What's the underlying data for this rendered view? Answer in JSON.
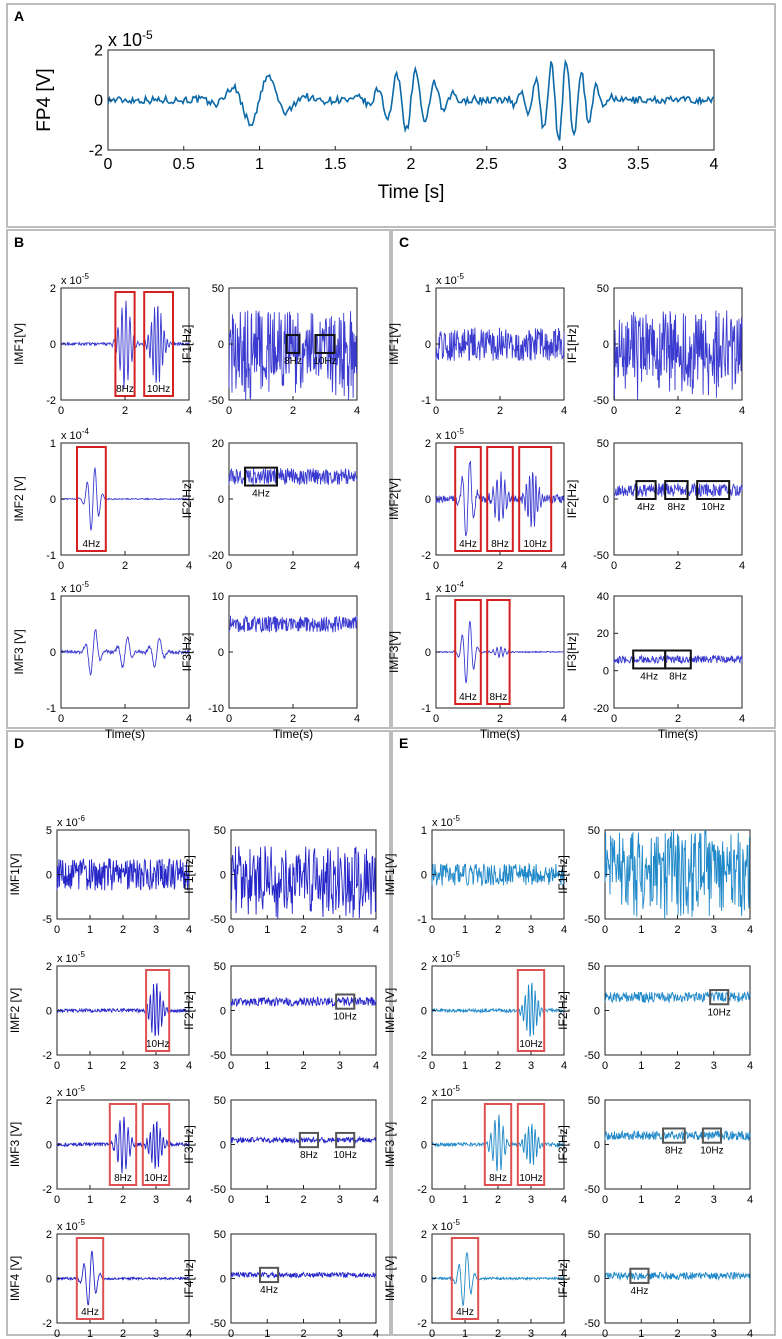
{
  "panels": [
    {
      "label": "A"
    },
    {
      "label": "B"
    },
    {
      "label": "C"
    },
    {
      "label": "D"
    },
    {
      "label": "E"
    }
  ],
  "chart_data": [
    {
      "panel": "A",
      "type": "line",
      "title": "",
      "color": "#0d6aa8",
      "xlabel": "Time [s]",
      "ylabel": "FP4 [V]",
      "exponent": "x 10",
      "exponent_power": "-5",
      "xlim": [
        0,
        4
      ],
      "ylim": [
        -2,
        2
      ],
      "xticks": [
        "0",
        "0.5",
        "1",
        "1.5",
        "2",
        "2.5",
        "3",
        "3.5",
        "4"
      ],
      "yticks": [
        "-2",
        "0",
        "2"
      ],
      "bursts": [
        [
          1.0,
          1.0,
          4
        ],
        [
          2.0,
          1.2,
          8
        ],
        [
          3.0,
          1.6,
          10
        ]
      ],
      "noise": 0.15,
      "boxes": []
    },
    {
      "panel": "B",
      "type": "line",
      "color": "#3b3bd0",
      "xlabel": "",
      "ylabel": "IMF1[V]",
      "exponent": "x 10",
      "exponent_power": "-5",
      "xlim": [
        0,
        4
      ],
      "ylim": [
        -2,
        2
      ],
      "xticks": [
        "0",
        "2",
        "4"
      ],
      "yticks": [
        "-2",
        "0",
        "2"
      ],
      "bursts": [
        [
          2.0,
          1.6,
          8
        ],
        [
          3.0,
          1.5,
          10
        ]
      ],
      "noise": 0.05,
      "boxes": [
        {
          "x0": 1.7,
          "x1": 2.3,
          "label": "8Hz",
          "color": "#d42020"
        },
        {
          "x0": 2.6,
          "x1": 3.5,
          "label": "10Hz",
          "color": "#d42020"
        }
      ]
    },
    {
      "panel": "B",
      "type": "line",
      "color": "#3b3bd0",
      "xlabel": "",
      "ylabel": "IF1[Hz]",
      "exponent": "",
      "exponent_power": "",
      "xlim": [
        0,
        4
      ],
      "ylim": [
        -50,
        50
      ],
      "xticks": [
        "0",
        "2",
        "4"
      ],
      "yticks": [
        "-50",
        "0",
        "50"
      ],
      "bursts": [],
      "noise": 30,
      "spiky": true,
      "boxes": [
        {
          "x0": 1.8,
          "x1": 2.2,
          "label": "8Hz",
          "color": "#111111"
        },
        {
          "x0": 2.7,
          "x1": 3.3,
          "label": "10Hz",
          "color": "#111111"
        }
      ]
    },
    {
      "panel": "B",
      "type": "line",
      "color": "#3b3bd0",
      "xlabel": "",
      "ylabel": "IMF2 [V]",
      "exponent": "x 10",
      "exponent_power": "-4",
      "xlim": [
        0,
        4
      ],
      "ylim": [
        -1,
        1
      ],
      "xticks": [
        "0",
        "2",
        "4"
      ],
      "yticks": [
        "-1",
        "0",
        "1"
      ],
      "bursts": [
        [
          1.0,
          0.6,
          4
        ]
      ],
      "noise": 0.01,
      "boxes": [
        {
          "x0": 0.5,
          "x1": 1.4,
          "label": "4Hz",
          "color": "#d42020"
        }
      ]
    },
    {
      "panel": "B",
      "type": "line",
      "color": "#3b3bd0",
      "xlabel": "",
      "ylabel": "IF2[Hz]",
      "exponent": "",
      "exponent_power": "",
      "xlim": [
        0,
        4
      ],
      "ylim": [
        -20,
        20
      ],
      "xticks": [
        "0",
        "2",
        "4"
      ],
      "yticks": [
        "-20",
        "0",
        "20"
      ],
      "bursts": [],
      "noise": 3,
      "offset": 8,
      "boxes": [
        {
          "x0": 0.5,
          "x1": 1.5,
          "label": "4Hz",
          "color": "#111111"
        }
      ]
    },
    {
      "panel": "B",
      "type": "line",
      "color": "#3b3bd0",
      "xlabel": "Time(s)",
      "ylabel": "IMF3 [V]",
      "exponent": "x 10",
      "exponent_power": "-5",
      "xlim": [
        0,
        4
      ],
      "ylim": [
        -1,
        1
      ],
      "xticks": [
        "0",
        "2",
        "4"
      ],
      "yticks": [
        "-1",
        "0",
        "1"
      ],
      "bursts": [
        [
          1.0,
          0.45,
          3
        ],
        [
          2.0,
          0.3,
          3
        ],
        [
          3.0,
          0.3,
          3
        ]
      ],
      "noise": 0.03,
      "boxes": []
    },
    {
      "panel": "B",
      "type": "line",
      "color": "#3b3bd0",
      "xlabel": "Time(s)",
      "ylabel": "IF3[Hz]",
      "exponent": "",
      "exponent_power": "",
      "xlim": [
        0,
        4
      ],
      "ylim": [
        -10,
        10
      ],
      "xticks": [
        "0",
        "2",
        "4"
      ],
      "yticks": [
        "-10",
        "0",
        "10"
      ],
      "bursts": [],
      "noise": 1.5,
      "offset": 5,
      "boxes": []
    },
    {
      "panel": "C",
      "type": "line",
      "color": "#3b3bd0",
      "xlabel": "",
      "ylabel": "IMF1[V]",
      "exponent": "x 10",
      "exponent_power": "-5",
      "xlim": [
        0,
        4
      ],
      "ylim": [
        -1,
        1
      ],
      "xticks": [
        "0",
        "2",
        "4"
      ],
      "yticks": [
        "-1",
        "0",
        "1"
      ],
      "bursts": [],
      "noise": 0.3,
      "boxes": []
    },
    {
      "panel": "C",
      "type": "line",
      "color": "#3b3bd0",
      "xlabel": "",
      "ylabel": "IF1[Hz]",
      "exponent": "",
      "exponent_power": "",
      "xlim": [
        0,
        4
      ],
      "ylim": [
        -50,
        50
      ],
      "xticks": [
        "0",
        "2",
        "4"
      ],
      "yticks": [
        "-50",
        "0",
        "50"
      ],
      "bursts": [],
      "noise": 30,
      "spiky": true,
      "boxes": []
    },
    {
      "panel": "C",
      "type": "line",
      "color": "#3b3bd0",
      "xlabel": "",
      "ylabel": "IMF2[V]",
      "exponent": "x 10",
      "exponent_power": "-5",
      "xlim": [
        0,
        4
      ],
      "ylim": [
        -2,
        2
      ],
      "xticks": [
        "0",
        "2",
        "4"
      ],
      "yticks": [
        "-2",
        "0",
        "2"
      ],
      "bursts": [
        [
          1.0,
          1.5,
          4
        ],
        [
          2.0,
          0.9,
          8
        ],
        [
          3.0,
          1.0,
          10
        ]
      ],
      "noise": 0.15,
      "boxes": [
        {
          "x0": 0.6,
          "x1": 1.4,
          "label": "4Hz",
          "color": "#d42020"
        },
        {
          "x0": 1.6,
          "x1": 2.4,
          "label": "8Hz",
          "color": "#d42020"
        },
        {
          "x0": 2.6,
          "x1": 3.6,
          "label": "10Hz",
          "color": "#d42020"
        }
      ]
    },
    {
      "panel": "C",
      "type": "line",
      "color": "#3b3bd0",
      "xlabel": "",
      "ylabel": "IF2[Hz]",
      "exponent": "",
      "exponent_power": "",
      "xlim": [
        0,
        4
      ],
      "ylim": [
        -50,
        50
      ],
      "xticks": [
        "0",
        "2",
        "4"
      ],
      "yticks": [
        "-50",
        "0",
        "50"
      ],
      "bursts": [],
      "noise": 6,
      "offset": 8,
      "boxes": [
        {
          "x0": 0.7,
          "x1": 1.3,
          "label": "4Hz",
          "color": "#111111"
        },
        {
          "x0": 1.6,
          "x1": 2.3,
          "label": "8Hz",
          "color": "#111111"
        },
        {
          "x0": 2.6,
          "x1": 3.6,
          "label": "10Hz",
          "color": "#111111"
        }
      ]
    },
    {
      "panel": "C",
      "type": "line",
      "color": "#3b3bd0",
      "xlabel": "Time(s)",
      "ylabel": "IMF3[V]",
      "exponent": "x 10",
      "exponent_power": "-4",
      "xlim": [
        0,
        4
      ],
      "ylim": [
        -1,
        1
      ],
      "xticks": [
        "0",
        "2",
        "4"
      ],
      "yticks": [
        "-1",
        "0",
        "1"
      ],
      "bursts": [
        [
          1.0,
          0.6,
          4
        ],
        [
          2.0,
          0.1,
          8
        ]
      ],
      "noise": 0.01,
      "boxes": [
        {
          "x0": 0.6,
          "x1": 1.4,
          "label": "4Hz",
          "color": "#d42020"
        },
        {
          "x0": 1.6,
          "x1": 2.3,
          "label": "8Hz",
          "color": "#d42020"
        }
      ]
    },
    {
      "panel": "C",
      "type": "line",
      "color": "#3b3bd0",
      "xlabel": "Time(s)",
      "ylabel": "IF3[Hz]",
      "exponent": "",
      "exponent_power": "",
      "xlim": [
        0,
        4
      ],
      "ylim": [
        -20,
        40
      ],
      "xticks": [
        "0",
        "2",
        "4"
      ],
      "yticks": [
        "-20",
        "0",
        "20",
        "40"
      ],
      "bursts": [],
      "noise": 2,
      "offset": 6,
      "boxes": [
        {
          "x0": 0.6,
          "x1": 1.6,
          "label": "4Hz",
          "color": "#111111"
        },
        {
          "x0": 1.6,
          "x1": 2.4,
          "label": "8Hz",
          "color": "#111111"
        }
      ]
    },
    {
      "panel": "D",
      "type": "line",
      "color": "#2424c8",
      "xlabel": "",
      "ylabel": "IMF1[V]",
      "exponent": "x 10",
      "exponent_power": "-6",
      "xlim": [
        0,
        4
      ],
      "ylim": [
        -5,
        5
      ],
      "xticks": [
        "0",
        "1",
        "2",
        "3",
        "4"
      ],
      "yticks": [
        "-5",
        "0",
        "5"
      ],
      "bursts": [],
      "noise": 1.8,
      "boxes": []
    },
    {
      "panel": "D",
      "type": "line",
      "color": "#2424c8",
      "xlabel": "",
      "ylabel": "IF1[Hz]",
      "exponent": "",
      "exponent_power": "",
      "xlim": [
        0,
        4
      ],
      "ylim": [
        -50,
        50
      ],
      "xticks": [
        "0",
        "1",
        "2",
        "3",
        "4"
      ],
      "yticks": [
        "-50",
        "0",
        "50"
      ],
      "bursts": [],
      "noise": 32,
      "spiky": true,
      "boxes": []
    },
    {
      "panel": "D",
      "type": "line",
      "color": "#2424c8",
      "xlabel": "",
      "ylabel": "IMF2 [V]",
      "exponent": "x 10",
      "exponent_power": "-5",
      "xlim": [
        0,
        4
      ],
      "ylim": [
        -2,
        2
      ],
      "xticks": [
        "0",
        "1",
        "2",
        "3",
        "4"
      ],
      "yticks": [
        "-2",
        "0",
        "2"
      ],
      "bursts": [
        [
          3.0,
          1.3,
          10
        ]
      ],
      "noise": 0.08,
      "boxes": [
        {
          "x0": 2.7,
          "x1": 3.4,
          "label": "10Hz",
          "color": "#e05050"
        }
      ]
    },
    {
      "panel": "D",
      "type": "line",
      "color": "#2424c8",
      "xlabel": "",
      "ylabel": "IF2[Hz]",
      "exponent": "",
      "exponent_power": "",
      "xlim": [
        0,
        4
      ],
      "ylim": [
        -50,
        50
      ],
      "xticks": [
        "0",
        "1",
        "2",
        "3",
        "4"
      ],
      "yticks": [
        "-50",
        "0",
        "50"
      ],
      "bursts": [],
      "noise": 5,
      "offset": 10,
      "boxes": [
        {
          "x0": 2.9,
          "x1": 3.4,
          "label": "10Hz",
          "color": "#555555"
        }
      ]
    },
    {
      "panel": "D",
      "type": "line",
      "color": "#2424c8",
      "xlabel": "",
      "ylabel": "IMF3 [V]",
      "exponent": "x 10",
      "exponent_power": "-5",
      "xlim": [
        0,
        4
      ],
      "ylim": [
        -2,
        2
      ],
      "xticks": [
        "0",
        "1",
        "2",
        "3",
        "4"
      ],
      "yticks": [
        "-2",
        "0",
        "2"
      ],
      "bursts": [
        [
          2.0,
          1.3,
          8
        ],
        [
          3.0,
          1.1,
          10
        ]
      ],
      "noise": 0.08,
      "boxes": [
        {
          "x0": 1.6,
          "x1": 2.4,
          "label": "8Hz",
          "color": "#e05050"
        },
        {
          "x0": 2.6,
          "x1": 3.4,
          "label": "10Hz",
          "color": "#e05050"
        }
      ]
    },
    {
      "panel": "D",
      "type": "line",
      "color": "#2424c8",
      "xlabel": "",
      "ylabel": "IF3[Hz]",
      "exponent": "",
      "exponent_power": "",
      "xlim": [
        0,
        4
      ],
      "ylim": [
        -50,
        50
      ],
      "xticks": [
        "0",
        "1",
        "2",
        "3",
        "4"
      ],
      "yticks": [
        "-50",
        "0",
        "50"
      ],
      "bursts": [],
      "noise": 3,
      "offset": 5,
      "boxes": [
        {
          "x0": 1.9,
          "x1": 2.4,
          "label": "8Hz",
          "color": "#555555"
        },
        {
          "x0": 2.9,
          "x1": 3.4,
          "label": "10Hz",
          "color": "#555555"
        }
      ]
    },
    {
      "panel": "D",
      "type": "line",
      "color": "#2424c8",
      "xlabel": "Time(s)",
      "ylabel": "IMF4 [V]",
      "exponent": "x 10",
      "exponent_power": "-5",
      "xlim": [
        0,
        4
      ],
      "ylim": [
        -2,
        2
      ],
      "xticks": [
        "0",
        "1",
        "2",
        "3",
        "4"
      ],
      "yticks": [
        "-2",
        "0",
        "2"
      ],
      "bursts": [
        [
          1.0,
          1.3,
          4
        ]
      ],
      "noise": 0.05,
      "boxes": [
        {
          "x0": 0.6,
          "x1": 1.4,
          "label": "4Hz",
          "color": "#e05050"
        }
      ]
    },
    {
      "panel": "D",
      "type": "line",
      "color": "#2424c8",
      "xlabel": "Time (s)",
      "ylabel": "IF4[Hz]",
      "exponent": "",
      "exponent_power": "",
      "xlim": [
        0,
        4
      ],
      "ylim": [
        -50,
        50
      ],
      "xticks": [
        "0",
        "1",
        "2",
        "3",
        "4"
      ],
      "yticks": [
        "-50",
        "0",
        "50"
      ],
      "bursts": [],
      "noise": 3,
      "offset": 4,
      "boxes": [
        {
          "x0": 0.8,
          "x1": 1.3,
          "label": "4Hz",
          "color": "#555555"
        }
      ]
    },
    {
      "panel": "E",
      "type": "line",
      "color": "#1f88c8",
      "xlabel": "",
      "ylabel": "IMF1[V]",
      "exponent": "x 10",
      "exponent_power": "-5",
      "xlim": [
        0,
        4
      ],
      "ylim": [
        -1,
        1
      ],
      "xticks": [
        "0",
        "1",
        "2",
        "3",
        "4"
      ],
      "yticks": [
        "-1",
        "0",
        "1"
      ],
      "bursts": [],
      "noise": 0.25,
      "boxes": []
    },
    {
      "panel": "E",
      "type": "line",
      "color": "#1f88c8",
      "xlabel": "",
      "ylabel": "IF1[Hz]",
      "exponent": "",
      "exponent_power": "",
      "xlim": [
        0,
        4
      ],
      "ylim": [
        -50,
        50
      ],
      "xticks": [
        "0",
        "1",
        "2",
        "3",
        "4"
      ],
      "yticks": [
        "-50",
        "0",
        "50"
      ],
      "bursts": [],
      "noise": 30,
      "spiky": true,
      "offset": 20,
      "boxes": []
    },
    {
      "panel": "E",
      "type": "line",
      "color": "#1f88c8",
      "xlabel": "",
      "ylabel": "IMF2 [V]",
      "exponent": "x 10",
      "exponent_power": "-5",
      "xlim": [
        0,
        4
      ],
      "ylim": [
        -2,
        2
      ],
      "xticks": [
        "0",
        "1",
        "2",
        "3",
        "4"
      ],
      "yticks": [
        "-2",
        "0",
        "2"
      ],
      "bursts": [
        [
          3.0,
          1.3,
          10
        ]
      ],
      "noise": 0.08,
      "boxes": [
        {
          "x0": 2.6,
          "x1": 3.4,
          "label": "10Hz",
          "color": "#e05050"
        }
      ]
    },
    {
      "panel": "E",
      "type": "line",
      "color": "#1f88c8",
      "xlabel": "",
      "ylabel": "IF2[Hz]",
      "exponent": "",
      "exponent_power": "",
      "xlim": [
        0,
        4
      ],
      "ylim": [
        -50,
        50
      ],
      "xticks": [
        "0",
        "1",
        "2",
        "3",
        "4"
      ],
      "yticks": [
        "-50",
        "0",
        "50"
      ],
      "bursts": [],
      "noise": 6,
      "offset": 15,
      "boxes": [
        {
          "x0": 2.9,
          "x1": 3.4,
          "label": "10Hz",
          "color": "#555555"
        }
      ]
    },
    {
      "panel": "E",
      "type": "line",
      "color": "#1f88c8",
      "xlabel": "",
      "ylabel": "IMF3 [V]",
      "exponent": "x 10",
      "exponent_power": "-5",
      "xlim": [
        0,
        4
      ],
      "ylim": [
        -2,
        2
      ],
      "xticks": [
        "0",
        "1",
        "2",
        "3",
        "4"
      ],
      "yticks": [
        "-2",
        "0",
        "2"
      ],
      "bursts": [
        [
          2.0,
          1.3,
          8
        ],
        [
          3.0,
          1.0,
          10
        ]
      ],
      "noise": 0.08,
      "boxes": [
        {
          "x0": 1.6,
          "x1": 2.4,
          "label": "8Hz",
          "color": "#e05050"
        },
        {
          "x0": 2.6,
          "x1": 3.4,
          "label": "10Hz",
          "color": "#e05050"
        }
      ]
    },
    {
      "panel": "E",
      "type": "line",
      "color": "#1f88c8",
      "xlabel": "",
      "ylabel": "IF3[Hz]",
      "exponent": "",
      "exponent_power": "",
      "xlim": [
        0,
        4
      ],
      "ylim": [
        -50,
        50
      ],
      "xticks": [
        "0",
        "1",
        "2",
        "3",
        "4"
      ],
      "yticks": [
        "-50",
        "0",
        "50"
      ],
      "bursts": [],
      "noise": 5,
      "offset": 10,
      "boxes": [
        {
          "x0": 1.6,
          "x1": 2.2,
          "label": "8Hz",
          "color": "#555555"
        },
        {
          "x0": 2.7,
          "x1": 3.2,
          "label": "10Hz",
          "color": "#555555"
        }
      ]
    },
    {
      "panel": "E",
      "type": "line",
      "color": "#1f88c8",
      "xlabel": "Time(s)",
      "ylabel": "IMF4 [V]",
      "exponent": "x 10",
      "exponent_power": "-5",
      "xlim": [
        0,
        4
      ],
      "ylim": [
        -2,
        2
      ],
      "xticks": [
        "0",
        "1",
        "2",
        "3",
        "4"
      ],
      "yticks": [
        "-2",
        "0",
        "2"
      ],
      "bursts": [
        [
          1.0,
          1.3,
          4
        ]
      ],
      "noise": 0.05,
      "boxes": [
        {
          "x0": 0.6,
          "x1": 1.4,
          "label": "4Hz",
          "color": "#e05050"
        }
      ]
    },
    {
      "panel": "E",
      "type": "line",
      "color": "#1f88c8",
      "xlabel": "Time(s)",
      "ylabel": "IF4[Hz]",
      "exponent": "",
      "exponent_power": "",
      "xlim": [
        0,
        4
      ],
      "ylim": [
        -50,
        50
      ],
      "xticks": [
        "0",
        "1",
        "2",
        "3",
        "4"
      ],
      "yticks": [
        "-50",
        "0",
        "50"
      ],
      "bursts": [],
      "noise": 4,
      "offset": 3,
      "boxes": [
        {
          "x0": 0.7,
          "x1": 1.2,
          "label": "4Hz",
          "color": "#555555"
        }
      ]
    }
  ]
}
